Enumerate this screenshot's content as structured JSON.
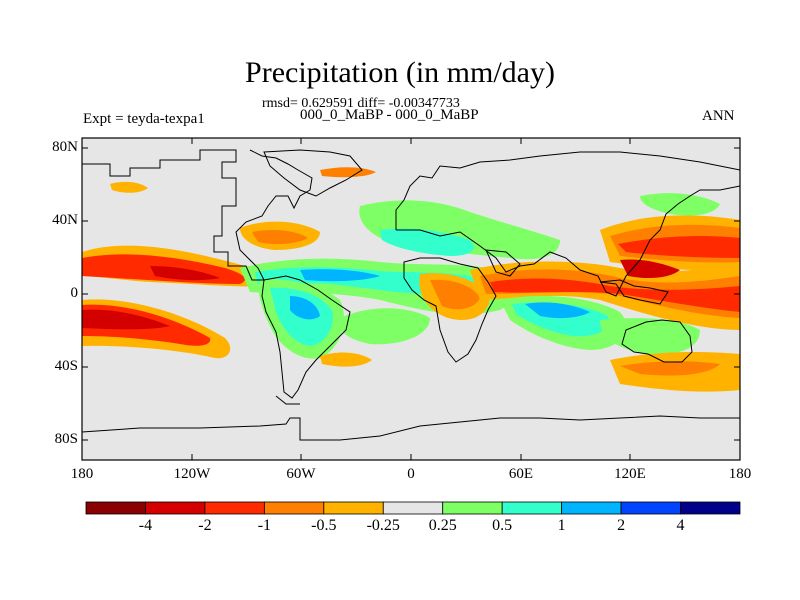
{
  "title": "Precipitation (in mm/day)",
  "stats_line": "rmsd= 0.629591 diff= -0.00347733",
  "experiment_name": "000_0_MaBP - 000_0_MaBP",
  "experiment_label": "Expt = teyda-texpa1",
  "season": "ANN",
  "latitude_ticks": [
    "80N",
    "40N",
    "0",
    "40S",
    "80S"
  ],
  "longitude_ticks": [
    "180",
    "120W",
    "60W",
    "0",
    "60E",
    "120E",
    "180"
  ],
  "colorbar": {
    "labels": [
      "-4",
      "-2",
      "-1",
      "-0.5",
      "-0.25",
      "0.25",
      "0.5",
      "1",
      "2",
      "4"
    ],
    "colors": [
      "#8b0000",
      "#d40000",
      "#ff2a00",
      "#ff7f00",
      "#ffb300",
      "#e6e6e6",
      "#7fff66",
      "#33ffcc",
      "#00b4ff",
      "#0044ff",
      "#00008b"
    ]
  },
  "colors": {
    "land_outline": "#000000",
    "neutral": "#e6e6e6",
    "frame": "#000000"
  }
}
